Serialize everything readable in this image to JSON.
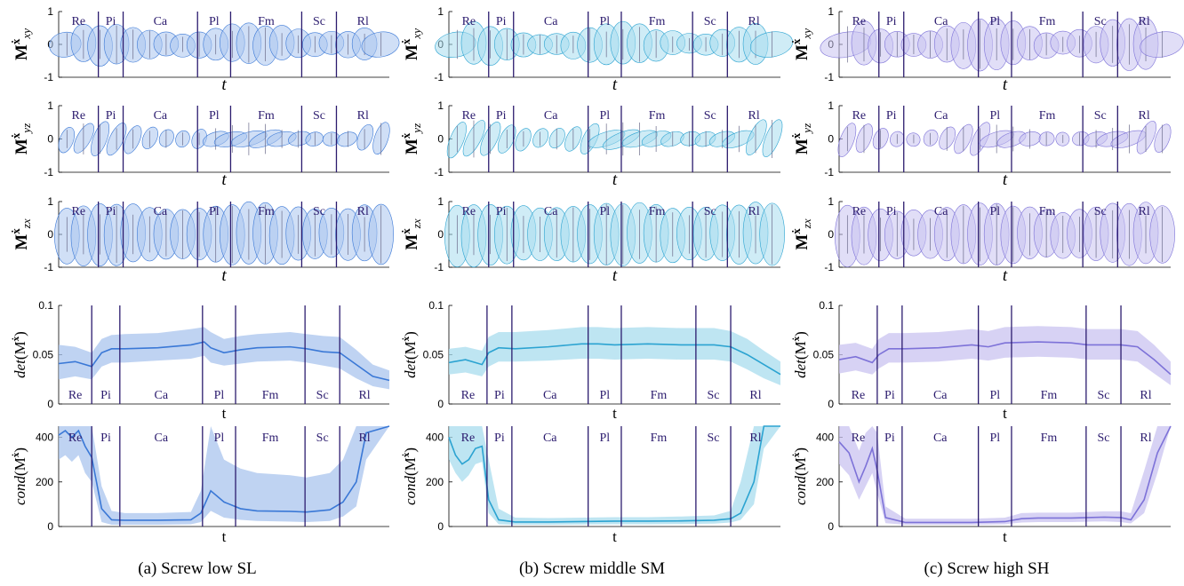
{
  "figure": {
    "columns": [
      {
        "caption": "(a) Screw low SL",
        "color": "#3a78d6",
        "fill": "#a9c4ee",
        "fillDark": "#7fa6e3"
      },
      {
        "caption": "(b) Screw middle SM",
        "color": "#2ba3d1",
        "fill": "#a8dcee",
        "fillDark": "#7cc8e3"
      },
      {
        "caption": "(c) Screw high SH",
        "color": "#7d72d8",
        "fill": "#c9c3f0",
        "fillDark": "#aea5ea"
      }
    ],
    "phases": [
      "Re",
      "Pi",
      "Ca",
      "Pl",
      "Fm",
      "Sc",
      "Rl"
    ],
    "phase_line_color": "#2b1b6e",
    "row_ylabels_text": [
      "$\\mathbf{M}^{\\dot{\\mathbf{x}}}_{xy}$",
      "$\\mathbf{M}^{\\dot{\\mathbf{x}}}_{yz}$",
      "$\\mathbf{M}^{\\dot{\\mathbf{x}}}_{zx}$",
      "det(M^x)",
      "cond(M^x)"
    ]
  },
  "chart_data": [
    {
      "type": "scatter",
      "panel": "a-xy",
      "xlabel": "t",
      "ylabel": "M xy",
      "ylim": [
        -1,
        1
      ],
      "yticks": [
        "1",
        "0",
        "-1"
      ],
      "phase_boundaries": [
        0.12,
        0.195,
        0.42,
        0.52,
        0.735,
        0.84
      ],
      "ellipses": {
        "count": 20,
        "width": 0.065,
        "height_range": [
          0.35,
          0.62
        ],
        "tilt": 0
      }
    },
    {
      "type": "scatter",
      "panel": "a-yz",
      "xlabel": "t",
      "ylabel": "M yz",
      "ylim": [
        -1,
        1
      ],
      "yticks": [
        "1",
        "0",
        "-1"
      ],
      "phase_boundaries": [
        0.12,
        0.195,
        0.42,
        0.52,
        0.735,
        0.84
      ],
      "ellipses": {
        "count": 20,
        "width": 0.05,
        "height_range": [
          0.25,
          0.55
        ],
        "tilt": 1
      }
    },
    {
      "type": "scatter",
      "panel": "a-zx",
      "xlabel": "t",
      "ylabel": "M zx",
      "ylim": [
        -1,
        1
      ],
      "yticks": [
        "1",
        "0",
        "-1"
      ],
      "phase_boundaries": [
        0.12,
        0.195,
        0.42,
        0.52,
        0.735,
        0.84
      ],
      "ellipses": {
        "count": 20,
        "width": 0.045,
        "height_range": [
          0.75,
          0.95
        ],
        "tilt": 0
      }
    },
    {
      "type": "area",
      "panel": "a-det",
      "xlabel": "t",
      "ylabel": "det(M)",
      "ylim": [
        0,
        0.1
      ],
      "yticks": [
        "0.1",
        "0.05",
        "0"
      ],
      "phase_boundaries": [
        0.1,
        0.185,
        0.435,
        0.535,
        0.745,
        0.85
      ],
      "x": [
        0,
        0.05,
        0.1,
        0.13,
        0.16,
        0.2,
        0.3,
        0.4,
        0.44,
        0.46,
        0.5,
        0.55,
        0.6,
        0.7,
        0.75,
        0.8,
        0.85,
        0.9,
        0.95,
        1.0
      ],
      "y": [
        0.041,
        0.043,
        0.038,
        0.052,
        0.056,
        0.056,
        0.057,
        0.06,
        0.063,
        0.057,
        0.052,
        0.055,
        0.057,
        0.058,
        0.056,
        0.053,
        0.052,
        0.04,
        0.028,
        0.024
      ],
      "lower": [
        0.025,
        0.028,
        0.025,
        0.038,
        0.042,
        0.042,
        0.044,
        0.046,
        0.049,
        0.042,
        0.039,
        0.041,
        0.043,
        0.044,
        0.042,
        0.039,
        0.036,
        0.026,
        0.018,
        0.015
      ],
      "upper": [
        0.06,
        0.058,
        0.052,
        0.066,
        0.07,
        0.071,
        0.072,
        0.076,
        0.078,
        0.073,
        0.066,
        0.069,
        0.071,
        0.073,
        0.071,
        0.069,
        0.068,
        0.055,
        0.04,
        0.034
      ]
    },
    {
      "type": "area",
      "panel": "a-cond",
      "xlabel": "t",
      "ylabel": "cond(M)",
      "ylim": [
        0,
        450
      ],
      "yticks": [
        "400",
        "200",
        "0"
      ],
      "phase_boundaries": [
        0.1,
        0.185,
        0.435,
        0.535,
        0.745,
        0.85
      ],
      "x": [
        0,
        0.02,
        0.04,
        0.06,
        0.08,
        0.1,
        0.13,
        0.16,
        0.2,
        0.3,
        0.4,
        0.43,
        0.46,
        0.5,
        0.55,
        0.6,
        0.7,
        0.75,
        0.82,
        0.86,
        0.9,
        0.93,
        1.0
      ],
      "y": [
        410,
        430,
        400,
        430,
        360,
        310,
        80,
        30,
        28,
        28,
        30,
        60,
        160,
        110,
        80,
        70,
        68,
        65,
        75,
        110,
        200,
        420,
        450
      ],
      "lower": [
        300,
        320,
        290,
        320,
        240,
        200,
        20,
        8,
        8,
        8,
        10,
        20,
        70,
        40,
        30,
        25,
        22,
        20,
        25,
        45,
        90,
        300,
        450
      ],
      "upper": [
        450,
        450,
        450,
        450,
        450,
        450,
        180,
        70,
        60,
        60,
        65,
        160,
        450,
        300,
        260,
        240,
        230,
        220,
        240,
        300,
        450,
        450,
        450
      ]
    },
    {
      "type": "scatter",
      "panel": "b-xy",
      "xlabel": "t",
      "ylabel": "M xy",
      "ylim": [
        -1,
        1
      ],
      "yticks": [
        "1",
        "0",
        "-1"
      ],
      "phase_boundaries": [
        0.12,
        0.195,
        0.42,
        0.52,
        0.735,
        0.84
      ],
      "ellipses": {
        "count": 20,
        "width": 0.065,
        "height_range": [
          0.3,
          0.65
        ],
        "tilt": 0
      }
    },
    {
      "type": "scatter",
      "panel": "b-yz",
      "xlabel": "t",
      "ylabel": "M yz",
      "ylim": [
        -1,
        1
      ],
      "yticks": [
        "1",
        "0",
        "-1"
      ],
      "phase_boundaries": [
        0.12,
        0.195,
        0.42,
        0.52,
        0.735,
        0.84
      ],
      "ellipses": {
        "count": 20,
        "width": 0.05,
        "height_range": [
          0.3,
          0.6
        ],
        "tilt": 1
      }
    },
    {
      "type": "scatter",
      "panel": "b-zx",
      "xlabel": "t",
      "ylabel": "M zx",
      "ylim": [
        -1,
        1
      ],
      "yticks": [
        "1",
        "0",
        "-1"
      ],
      "phase_boundaries": [
        0.12,
        0.195,
        0.42,
        0.52,
        0.735,
        0.84
      ],
      "ellipses": {
        "count": 20,
        "width": 0.05,
        "height_range": [
          0.8,
          0.95
        ],
        "tilt": 0
      }
    },
    {
      "type": "area",
      "panel": "b-det",
      "xlabel": "t",
      "ylabel": "det(M)",
      "ylim": [
        0,
        0.1
      ],
      "yticks": [
        "0.1",
        "0.05",
        "0"
      ],
      "phase_boundaries": [
        0.115,
        0.19,
        0.42,
        0.52,
        0.745,
        0.85
      ],
      "x": [
        0,
        0.05,
        0.1,
        0.12,
        0.15,
        0.2,
        0.3,
        0.4,
        0.45,
        0.5,
        0.6,
        0.7,
        0.75,
        0.8,
        0.85,
        0.9,
        0.95,
        1.0
      ],
      "y": [
        0.042,
        0.045,
        0.04,
        0.052,
        0.057,
        0.056,
        0.058,
        0.061,
        0.061,
        0.06,
        0.061,
        0.06,
        0.06,
        0.06,
        0.058,
        0.05,
        0.04,
        0.03
      ],
      "lower": [
        0.03,
        0.032,
        0.028,
        0.038,
        0.043,
        0.043,
        0.044,
        0.046,
        0.046,
        0.045,
        0.046,
        0.045,
        0.045,
        0.045,
        0.043,
        0.035,
        0.026,
        0.019
      ],
      "upper": [
        0.056,
        0.058,
        0.054,
        0.068,
        0.073,
        0.073,
        0.075,
        0.078,
        0.078,
        0.077,
        0.078,
        0.077,
        0.077,
        0.077,
        0.074,
        0.066,
        0.054,
        0.043
      ]
    },
    {
      "type": "area",
      "panel": "b-cond",
      "xlabel": "t",
      "ylabel": "cond(M)",
      "ylim": [
        0,
        450
      ],
      "yticks": [
        "400",
        "200",
        "0"
      ],
      "phase_boundaries": [
        0.115,
        0.19,
        0.42,
        0.52,
        0.745,
        0.85
      ],
      "x": [
        0,
        0.02,
        0.04,
        0.06,
        0.08,
        0.1,
        0.12,
        0.15,
        0.2,
        0.3,
        0.4,
        0.5,
        0.6,
        0.7,
        0.8,
        0.85,
        0.88,
        0.92,
        0.95,
        1.0
      ],
      "y": [
        400,
        320,
        280,
        300,
        350,
        360,
        120,
        30,
        20,
        20,
        22,
        24,
        24,
        25,
        28,
        35,
        60,
        200,
        450,
        450
      ],
      "lower": [
        300,
        240,
        200,
        230,
        280,
        290,
        60,
        10,
        8,
        8,
        9,
        10,
        10,
        11,
        13,
        18,
        30,
        100,
        350,
        450
      ],
      "upper": [
        450,
        450,
        450,
        450,
        450,
        450,
        300,
        80,
        40,
        38,
        40,
        42,
        42,
        45,
        50,
        70,
        200,
        450,
        450,
        450
      ]
    },
    {
      "type": "scatter",
      "panel": "c-xy",
      "xlabel": "t",
      "ylabel": "M xy",
      "ylim": [
        -1,
        1
      ],
      "yticks": [
        "1",
        "0",
        "-1"
      ],
      "phase_boundaries": [
        0.12,
        0.195,
        0.42,
        0.52,
        0.735,
        0.84
      ],
      "ellipses": {
        "count": 20,
        "width": 0.065,
        "height_range": [
          0.35,
          0.8
        ],
        "tilt": 0
      }
    },
    {
      "type": "scatter",
      "panel": "c-yz",
      "xlabel": "t",
      "ylabel": "M yz",
      "ylim": [
        -1,
        1
      ],
      "yticks": [
        "1",
        "0",
        "-1"
      ],
      "phase_boundaries": [
        0.12,
        0.195,
        0.42,
        0.52,
        0.735,
        0.84
      ],
      "ellipses": {
        "count": 20,
        "width": 0.05,
        "height_range": [
          0.2,
          0.55
        ],
        "tilt": 1
      }
    },
    {
      "type": "scatter",
      "panel": "c-zx",
      "xlabel": "t",
      "ylabel": "M zx",
      "ylim": [
        -1,
        1
      ],
      "yticks": [
        "1",
        "0",
        "-1"
      ],
      "phase_boundaries": [
        0.12,
        0.195,
        0.42,
        0.52,
        0.735,
        0.84
      ],
      "ellipses": {
        "count": 20,
        "width": 0.045,
        "height_range": [
          0.7,
          0.95
        ],
        "tilt": 0
      }
    },
    {
      "type": "area",
      "panel": "c-det",
      "xlabel": "t",
      "ylabel": "det(M)",
      "ylim": [
        0,
        0.1
      ],
      "yticks": [
        "0.1",
        "0.05",
        "0"
      ],
      "phase_boundaries": [
        0.115,
        0.19,
        0.42,
        0.52,
        0.745,
        0.85
      ],
      "x": [
        0,
        0.05,
        0.1,
        0.12,
        0.15,
        0.2,
        0.3,
        0.4,
        0.45,
        0.5,
        0.6,
        0.7,
        0.75,
        0.8,
        0.85,
        0.9,
        0.95,
        1.0
      ],
      "y": [
        0.045,
        0.048,
        0.042,
        0.05,
        0.056,
        0.056,
        0.057,
        0.06,
        0.058,
        0.062,
        0.063,
        0.062,
        0.06,
        0.06,
        0.06,
        0.058,
        0.045,
        0.03
      ],
      "lower": [
        0.031,
        0.034,
        0.03,
        0.036,
        0.042,
        0.042,
        0.043,
        0.046,
        0.044,
        0.047,
        0.048,
        0.047,
        0.045,
        0.045,
        0.045,
        0.043,
        0.031,
        0.019
      ],
      "upper": [
        0.06,
        0.062,
        0.056,
        0.066,
        0.072,
        0.072,
        0.073,
        0.076,
        0.074,
        0.078,
        0.079,
        0.078,
        0.076,
        0.076,
        0.076,
        0.074,
        0.06,
        0.043
      ]
    },
    {
      "type": "area",
      "panel": "c-cond",
      "xlabel": "t",
      "ylabel": "cond(M)",
      "ylim": [
        0,
        450
      ],
      "yticks": [
        "400",
        "200",
        "0"
      ],
      "phase_boundaries": [
        0.115,
        0.19,
        0.42,
        0.52,
        0.745,
        0.85
      ],
      "x": [
        0,
        0.03,
        0.06,
        0.08,
        0.1,
        0.115,
        0.14,
        0.2,
        0.3,
        0.4,
        0.5,
        0.55,
        0.6,
        0.7,
        0.8,
        0.85,
        0.88,
        0.92,
        0.96,
        1.0
      ],
      "y": [
        380,
        330,
        200,
        270,
        350,
        250,
        40,
        18,
        18,
        18,
        22,
        35,
        38,
        38,
        42,
        40,
        30,
        120,
        330,
        450
      ],
      "lower": [
        280,
        230,
        120,
        180,
        240,
        150,
        15,
        8,
        8,
        8,
        10,
        18,
        20,
        20,
        23,
        20,
        14,
        60,
        240,
        450
      ],
      "upper": [
        450,
        450,
        340,
        420,
        450,
        420,
        90,
        35,
        35,
        35,
        40,
        60,
        62,
        62,
        68,
        68,
        60,
        250,
        450,
        450
      ]
    }
  ]
}
